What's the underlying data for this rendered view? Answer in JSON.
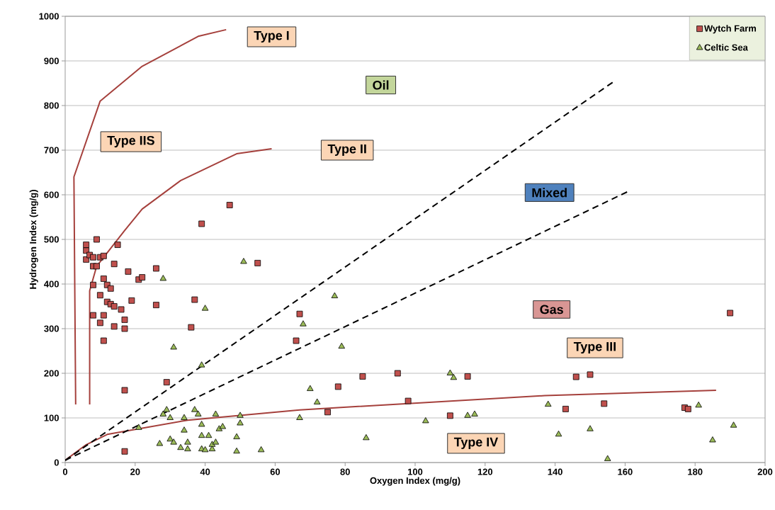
{
  "chart_data": {
    "type": "scatter",
    "xlabel": "Oxygen Index (mg/g)",
    "ylabel": "Hydrogen Index (mg/g)",
    "xlim": [
      0,
      200
    ],
    "ylim": [
      0,
      1000
    ],
    "xticks": [
      0,
      20,
      40,
      60,
      80,
      100,
      120,
      140,
      160,
      180,
      200
    ],
    "yticks": [
      0,
      100,
      200,
      300,
      400,
      500,
      600,
      700,
      800,
      900,
      1000
    ],
    "grid": "y",
    "legend": "top right",
    "series": [
      {
        "name": "Wytch Farm",
        "marker": "square",
        "color": "#c0504d",
        "x": [
          6,
          6,
          6,
          7,
          8,
          8,
          9,
          9,
          10,
          11,
          8,
          8,
          10,
          10,
          11,
          11,
          11,
          12,
          12,
          13,
          13,
          14,
          14,
          14,
          15,
          16,
          17,
          17,
          17,
          17,
          18,
          19,
          21,
          22,
          26,
          26,
          29,
          36,
          37,
          39,
          47,
          55,
          66,
          67,
          75,
          78,
          85,
          95,
          98,
          110,
          115,
          143,
          146,
          150,
          154,
          177,
          178,
          190
        ],
        "values": [
          488,
          475,
          455,
          465,
          440,
          460,
          500,
          440,
          460,
          463,
          398,
          330,
          375,
          313,
          330,
          412,
          273,
          360,
          398,
          355,
          390,
          445,
          350,
          305,
          488,
          343,
          320,
          300,
          162,
          25,
          428,
          363,
          410,
          415,
          435,
          353,
          180,
          303,
          365,
          535,
          577,
          447,
          273,
          333,
          113,
          170,
          193,
          200,
          138,
          105,
          193,
          120,
          192,
          197,
          132,
          123,
          120,
          335
        ]
      },
      {
        "name": "Celtic Sea",
        "marker": "triangle",
        "color": "#9bbb59",
        "x": [
          28,
          31,
          39,
          40,
          51,
          77,
          68,
          79,
          21,
          27,
          28,
          29,
          30,
          30,
          31,
          33,
          34,
          34,
          35,
          35,
          37,
          38,
          39,
          39,
          39,
          40,
          41,
          42,
          42,
          43,
          43,
          44,
          45,
          49,
          49,
          50,
          50,
          56,
          67,
          70,
          72,
          86,
          103,
          110,
          111,
          115,
          117,
          138,
          141,
          150,
          155,
          181,
          185,
          191
        ],
        "values": [
          412,
          258,
          218,
          345,
          450,
          373,
          310,
          260,
          78,
          42,
          108,
          118,
          100,
          52,
          45,
          33,
          72,
          100,
          45,
          30,
          118,
          108,
          85,
          60,
          30,
          28,
          60,
          30,
          40,
          108,
          45,
          75,
          80,
          25,
          57,
          105,
          88,
          28,
          100,
          165,
          135,
          55,
          93,
          200,
          190,
          105,
          108,
          130,
          63,
          75,
          8,
          128,
          50,
          83
        ]
      },
      {
        "type": "line",
        "color": "#a5403c",
        "line_style": "solid",
        "x": [
          3,
          2.5,
          10,
          22,
          38,
          46
        ],
        "values": [
          130,
          640,
          810,
          888,
          955,
          970
        ]
      },
      {
        "type": "line",
        "color": "#a5403c",
        "line_style": "solid",
        "x": [
          7,
          7,
          9,
          13,
          17,
          22,
          33,
          49,
          59
        ],
        "values": [
          130,
          385,
          440,
          480,
          520,
          568,
          632,
          692,
          703
        ]
      },
      {
        "type": "line",
        "color": "#a5403c",
        "line_style": "solid",
        "x": [
          0,
          6,
          12,
          35,
          67,
          137,
          186
        ],
        "values": [
          5,
          40,
          63,
          95,
          118,
          150,
          162
        ]
      },
      {
        "type": "line",
        "color": "#000000",
        "line_style": "dashed",
        "x": [
          0,
          157
        ],
        "values": [
          5,
          855
        ]
      },
      {
        "type": "line",
        "color": "#000000",
        "line_style": "dashed",
        "x": [
          0,
          161
        ],
        "values": [
          5,
          608
        ]
      }
    ],
    "annotations": [
      "Type I",
      "Oil",
      "Type IIS",
      "Type II",
      "Mixed",
      "Gas",
      "Type III",
      "Type IV"
    ]
  }
}
